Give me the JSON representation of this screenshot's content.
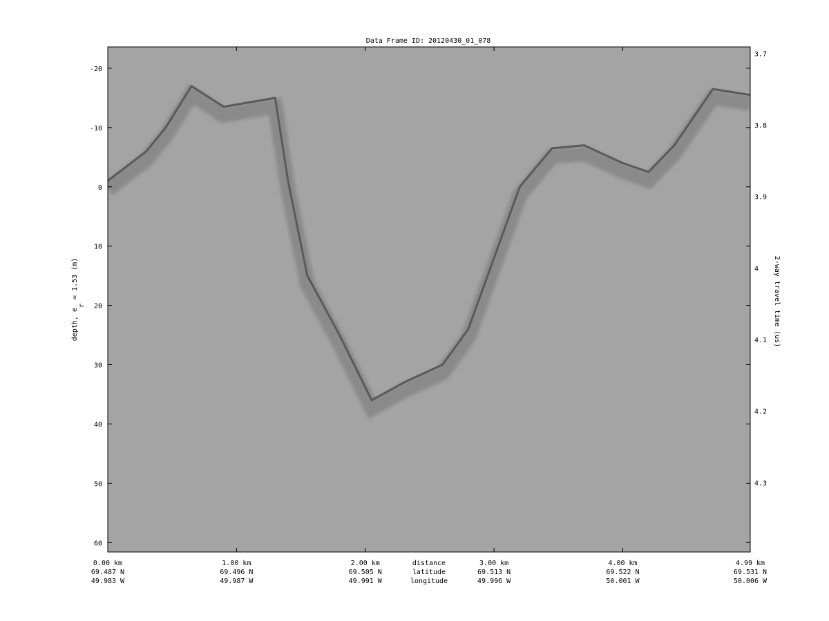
{
  "chart_data": {
    "type": "heatmap",
    "title": "Data Frame ID: 20120430_01_078",
    "ylabel": "depth, e",
    "ylabel_sub": "r",
    "ylabel_tail": " = 1.53 (m)",
    "y2label": "2-way travel time (us)",
    "ylim": [
      -23.6,
      61.6
    ],
    "yticks": [
      -20,
      -10,
      0,
      10,
      20,
      30,
      40,
      50,
      60
    ],
    "y2lim": [
      3.691,
      4.397
    ],
    "y2ticks": [
      "3.7",
      "3.8",
      "3.9",
      "4",
      "4.1",
      "4.2",
      "4.3"
    ],
    "xlim": [
      0,
      4.99
    ],
    "xticks": [
      {
        "km": 0,
        "distance": "0.00 km",
        "latitude": "69.487 N",
        "longitude": "49.983 W"
      },
      {
        "km": 1,
        "distance": "1.00 km",
        "latitude": "69.496 N",
        "longitude": "49.987 W"
      },
      {
        "km": 2,
        "distance": "2.00 km",
        "latitude": "69.505 N",
        "longitude": "49.991 W"
      },
      {
        "km": 3,
        "distance": "3.00 km",
        "latitude": "69.513 N",
        "longitude": "49.996 W"
      },
      {
        "km": 4,
        "distance": "4.00 km",
        "latitude": "69.522 N",
        "longitude": "50.001 W"
      },
      {
        "km": 4.99,
        "distance": "4.99 km",
        "latitude": "69.531 N",
        "longitude": "50.006 W"
      }
    ],
    "xrow_labels": {
      "distance": "distance",
      "latitude": "latitude",
      "longitude": "longitude"
    },
    "colormap": "grayscale",
    "grid": false,
    "bed_reflector": {
      "x_km": [
        0,
        0.3,
        0.45,
        0.65,
        0.9,
        1.3,
        1.4,
        1.55,
        1.8,
        2.05,
        2.3,
        2.6,
        2.8,
        3.0,
        3.2,
        3.45,
        3.7,
        4.0,
        4.2,
        4.4,
        4.7,
        4.99
      ],
      "depth_m": [
        -1,
        -6,
        -10,
        -17,
        -13.5,
        -15,
        -1,
        15,
        25,
        36,
        33,
        30,
        24,
        12,
        0,
        -6.5,
        -7,
        -4,
        -2.5,
        -7,
        -16.5,
        -15.5
      ]
    }
  }
}
